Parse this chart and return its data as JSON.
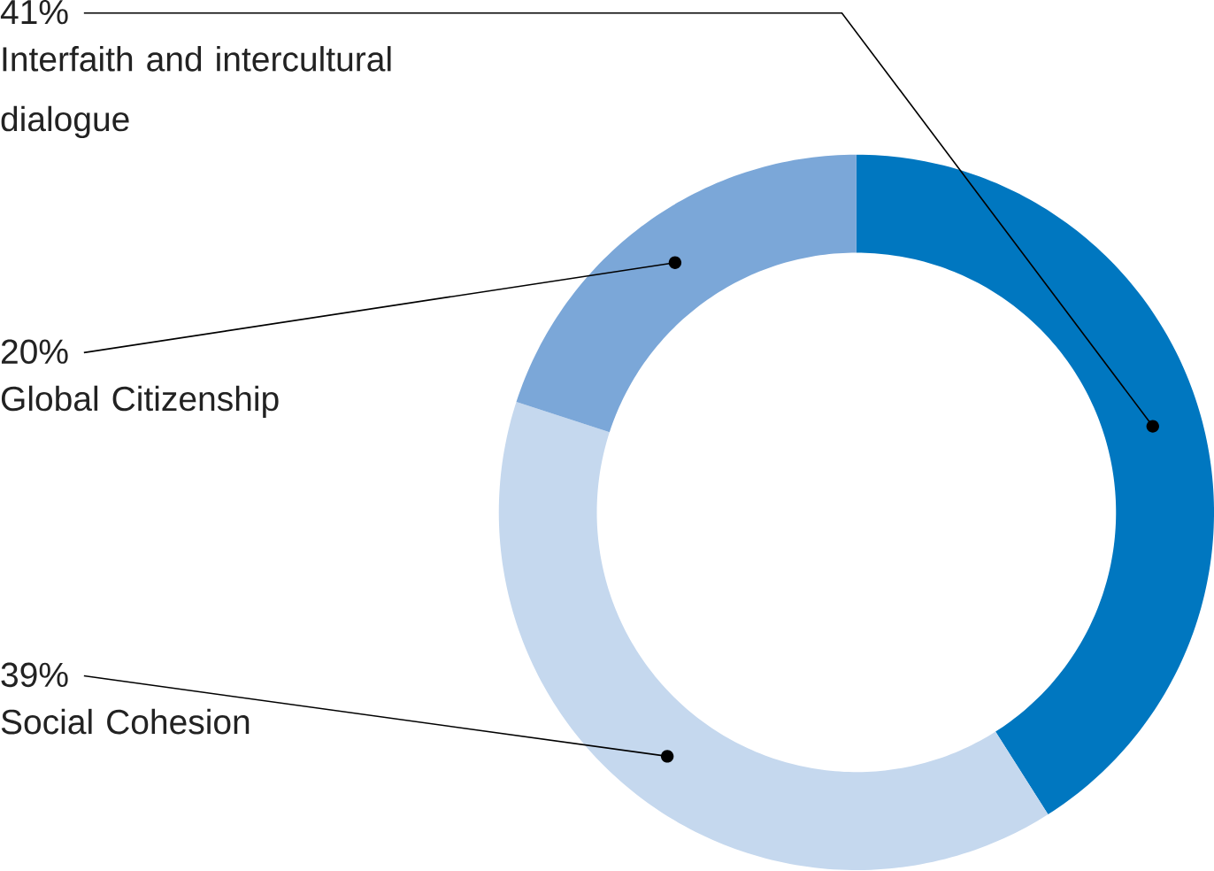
{
  "chart_data": {
    "type": "donut",
    "categories": [
      "Interfaith and intercultural dialogue",
      "Social Cohesion",
      "Global Citizenship"
    ],
    "values": [
      41,
      39,
      20
    ],
    "value_labels": [
      "41%",
      "39%",
      "20%"
    ],
    "colors": [
      "#0077c0",
      "#c5d8ee",
      "#7ba7d8"
    ]
  }
}
